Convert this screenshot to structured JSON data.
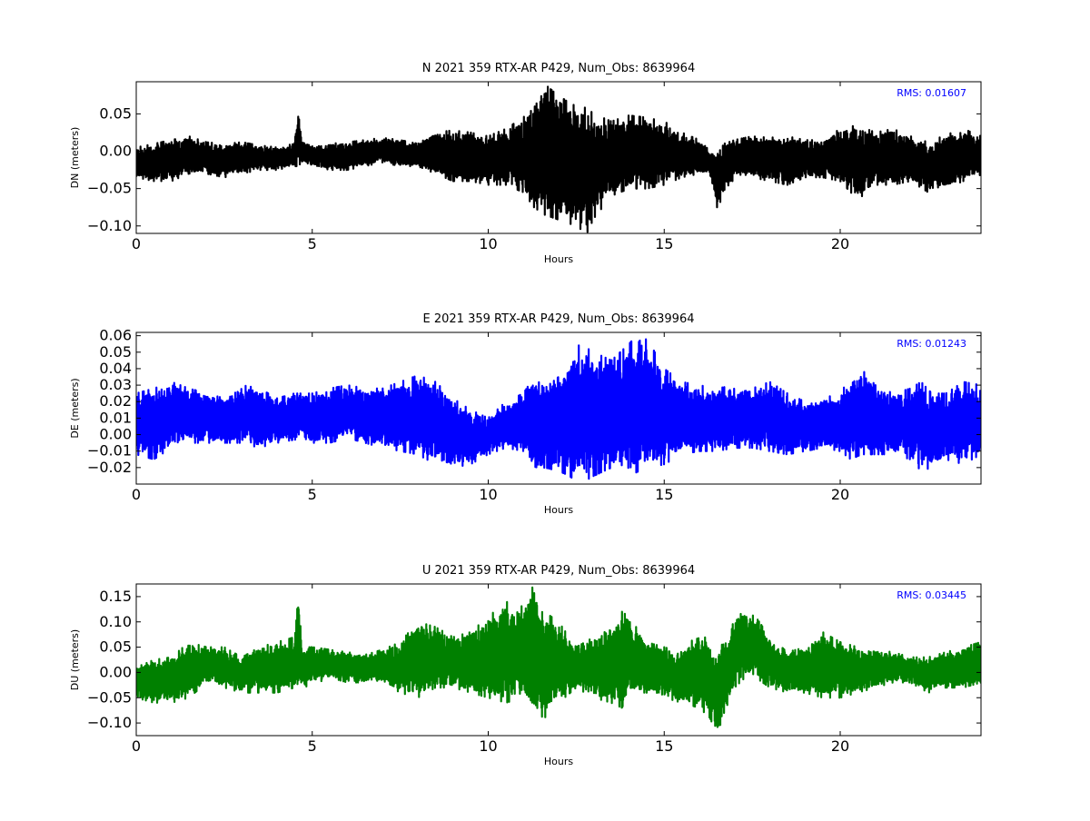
{
  "chart_data": [
    {
      "type": "line",
      "title": "N 2021 359 RTX-AR  P429, Num_Obs: 8639964",
      "xlabel": "Hours",
      "ylabel": "DN (meters)",
      "xlim": [
        0,
        24
      ],
      "ylim": [
        -0.11,
        0.093
      ],
      "xticks": [
        0,
        5,
        10,
        15,
        20
      ],
      "yticks": [
        -0.1,
        -0.05,
        0.0,
        0.05
      ],
      "ytick_labels": [
        "−0.10",
        "−0.05",
        "0.00",
        "0.05"
      ],
      "grid": false,
      "color": "#000000",
      "annotation": "RMS:  0.01607",
      "series": [
        {
          "envelope": {
            "x": [
              0,
              0.5,
              1,
              1.5,
              2,
              2.5,
              3,
              3.5,
              4,
              4.5,
              4.6,
              4.7,
              5,
              5.5,
              6,
              6.5,
              7,
              7.5,
              8,
              8.5,
              9,
              9.5,
              10,
              10.5,
              11,
              11.3,
              11.6,
              11.9,
              12.2,
              12.5,
              12.8,
              13,
              13.5,
              14,
              14.5,
              15,
              15.5,
              16,
              16.3,
              16.5,
              16.7,
              17,
              17.5,
              18,
              18.5,
              19,
              19.5,
              20,
              20.5,
              21,
              21.5,
              22,
              22.5,
              23,
              23.5,
              24
            ],
            "upper": [
              0.005,
              0.01,
              0.015,
              0.02,
              0.012,
              0.01,
              0.012,
              0.008,
              0.005,
              0.01,
              0.058,
              0.015,
              0.008,
              0.01,
              0.012,
              0.015,
              0.018,
              0.015,
              0.01,
              0.025,
              0.028,
              0.025,
              0.02,
              0.03,
              0.045,
              0.07,
              0.09,
              0.078,
              0.068,
              0.06,
              0.058,
              0.05,
              0.04,
              0.048,
              0.045,
              0.04,
              0.025,
              0.015,
              0.0,
              -0.005,
              0.01,
              0.015,
              0.02,
              0.018,
              0.02,
              0.015,
              0.015,
              0.03,
              0.035,
              0.025,
              0.03,
              0.02,
              0.012,
              0.022,
              0.03,
              0.02
            ],
            "lower": [
              -0.035,
              -0.04,
              -0.04,
              -0.03,
              -0.03,
              -0.035,
              -0.03,
              -0.025,
              -0.025,
              -0.02,
              -0.02,
              -0.015,
              -0.02,
              -0.025,
              -0.025,
              -0.02,
              -0.015,
              -0.02,
              -0.02,
              -0.03,
              -0.04,
              -0.04,
              -0.045,
              -0.045,
              -0.055,
              -0.075,
              -0.085,
              -0.09,
              -0.095,
              -0.1,
              -0.11,
              -0.09,
              -0.06,
              -0.05,
              -0.05,
              -0.045,
              -0.035,
              -0.03,
              -0.03,
              -0.075,
              -0.06,
              -0.035,
              -0.035,
              -0.04,
              -0.045,
              -0.035,
              -0.035,
              -0.04,
              -0.065,
              -0.045,
              -0.045,
              -0.04,
              -0.055,
              -0.05,
              -0.04,
              -0.035
            ]
          }
        }
      ]
    },
    {
      "type": "line",
      "title": "E 2021 359 RTX-AR  P429, Num_Obs: 8639964",
      "xlabel": "Hours",
      "ylabel": "DE (meters)",
      "xlim": [
        0,
        24
      ],
      "ylim": [
        -0.03,
        0.062
      ],
      "xticks": [
        0,
        5,
        10,
        15,
        20
      ],
      "yticks": [
        -0.02,
        -0.01,
        0.0,
        0.01,
        0.02,
        0.03,
        0.04,
        0.05,
        0.06
      ],
      "ytick_labels": [
        "−0.02",
        "−0.01",
        "0.00",
        "0.01",
        "0.02",
        "0.03",
        "0.04",
        "0.05",
        "0.06"
      ],
      "grid": false,
      "color": "#0000ff",
      "annotation": "RMS:  0.01243",
      "series": [
        {
          "envelope": {
            "x": [
              0,
              0.5,
              1,
              1.5,
              2,
              2.5,
              3,
              3.5,
              4,
              4.5,
              5,
              5.5,
              6,
              6.5,
              7,
              7.5,
              8,
              8.5,
              9,
              9.5,
              10,
              10.5,
              11,
              11.3,
              11.6,
              12,
              12.3,
              12.6,
              13,
              13.5,
              14,
              14.3,
              14.6,
              15,
              15.5,
              16,
              16.5,
              17,
              17.5,
              18,
              18.5,
              19,
              19.5,
              20,
              20.3,
              20.6,
              21,
              21.5,
              22,
              22.3,
              22.6,
              23,
              23.5,
              24
            ],
            "upper": [
              0.025,
              0.028,
              0.032,
              0.028,
              0.025,
              0.022,
              0.03,
              0.028,
              0.022,
              0.025,
              0.025,
              0.028,
              0.03,
              0.028,
              0.028,
              0.032,
              0.036,
              0.032,
              0.022,
              0.015,
              0.01,
              0.02,
              0.025,
              0.035,
              0.028,
              0.035,
              0.045,
              0.055,
              0.05,
              0.045,
              0.055,
              0.062,
              0.055,
              0.04,
              0.032,
              0.03,
              0.028,
              0.03,
              0.028,
              0.032,
              0.025,
              0.02,
              0.022,
              0.025,
              0.035,
              0.04,
              0.03,
              0.025,
              0.028,
              0.032,
              0.025,
              0.025,
              0.032,
              0.03
            ],
            "lower": [
              -0.012,
              -0.015,
              -0.008,
              -0.005,
              -0.005,
              -0.005,
              -0.005,
              -0.008,
              -0.005,
              -0.003,
              -0.005,
              -0.005,
              -0.002,
              -0.005,
              -0.008,
              -0.01,
              -0.012,
              -0.018,
              -0.02,
              -0.018,
              -0.012,
              -0.008,
              -0.01,
              -0.025,
              -0.02,
              -0.022,
              -0.025,
              -0.03,
              -0.025,
              -0.02,
              -0.025,
              -0.022,
              -0.02,
              -0.018,
              -0.012,
              -0.01,
              -0.01,
              -0.008,
              -0.008,
              -0.01,
              -0.012,
              -0.01,
              -0.008,
              -0.01,
              -0.015,
              -0.012,
              -0.012,
              -0.012,
              -0.015,
              -0.022,
              -0.02,
              -0.015,
              -0.018,
              -0.012
            ]
          }
        }
      ]
    },
    {
      "type": "line",
      "title": "U 2021 359 RTX-AR  P429, Num_Obs: 8639964",
      "xlabel": "Hours",
      "ylabel": "DU (meters)",
      "xlim": [
        0,
        24
      ],
      "ylim": [
        -0.125,
        0.175
      ],
      "xticks": [
        0,
        5,
        10,
        15,
        20
      ],
      "yticks": [
        -0.1,
        -0.05,
        0.0,
        0.05,
        0.1,
        0.15
      ],
      "ytick_labels": [
        "−0.10",
        "−0.05",
        "0.00",
        "0.05",
        "0.10",
        "0.15"
      ],
      "grid": false,
      "color": "#008000",
      "annotation": "RMS:  0.03445",
      "series": [
        {
          "envelope": {
            "x": [
              0,
              0.5,
              1,
              1.5,
              2,
              2.5,
              3,
              3.5,
              4,
              4.5,
              4.6,
              4.7,
              5,
              5.5,
              6,
              6.5,
              7,
              7.5,
              8,
              8.5,
              9,
              9.5,
              10,
              10.5,
              11,
              11.3,
              11.6,
              12,
              12.5,
              13,
              13.5,
              13.8,
              14,
              14.5,
              15,
              15.5,
              16,
              16.3,
              16.5,
              16.7,
              17,
              17.3,
              17.6,
              18,
              18.5,
              19,
              19.5,
              20,
              20.5,
              21,
              21.5,
              22,
              22.5,
              23,
              23.5,
              24
            ],
            "upper": [
              0.01,
              0.025,
              0.03,
              0.06,
              0.05,
              0.05,
              0.03,
              0.05,
              0.06,
              0.07,
              0.175,
              0.05,
              0.05,
              0.045,
              0.04,
              0.035,
              0.045,
              0.06,
              0.1,
              0.09,
              0.07,
              0.08,
              0.11,
              0.14,
              0.13,
              0.175,
              0.12,
              0.1,
              0.05,
              0.07,
              0.1,
              0.12,
              0.11,
              0.06,
              0.05,
              0.04,
              0.08,
              0.06,
              0.02,
              0.07,
              0.11,
              0.12,
              0.11,
              0.07,
              0.04,
              0.05,
              0.08,
              0.06,
              0.05,
              0.045,
              0.04,
              0.03,
              0.03,
              0.04,
              0.05,
              0.06
            ],
            "lower": [
              -0.05,
              -0.06,
              -0.06,
              -0.05,
              -0.02,
              -0.03,
              -0.04,
              -0.04,
              -0.04,
              -0.03,
              -0.04,
              -0.03,
              -0.025,
              -0.01,
              -0.02,
              -0.02,
              -0.02,
              -0.04,
              -0.05,
              -0.03,
              -0.03,
              -0.04,
              -0.05,
              -0.06,
              -0.05,
              -0.08,
              -0.09,
              -0.06,
              -0.03,
              -0.05,
              -0.06,
              -0.07,
              -0.04,
              -0.04,
              -0.05,
              -0.06,
              -0.07,
              -0.09,
              -0.125,
              -0.08,
              -0.03,
              -0.01,
              -0.01,
              -0.03,
              -0.04,
              -0.04,
              -0.05,
              -0.05,
              -0.04,
              -0.03,
              -0.02,
              -0.02,
              -0.04,
              -0.03,
              -0.03,
              -0.02
            ]
          }
        }
      ]
    }
  ]
}
